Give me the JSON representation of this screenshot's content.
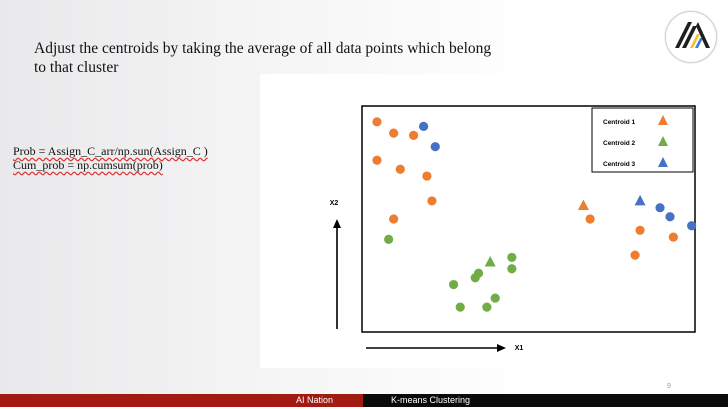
{
  "slide": {
    "title": "Adjust the centroids by taking the average of all data points which belong to that cluster",
    "number": "9"
  },
  "logo": {
    "icon": "ai-nation-logo-icon"
  },
  "code": {
    "line1": "Prob  = Assign_C_arr/np.sun(Assign_C )",
    "line2": "Cum_prob = np.cumsum(prob)"
  },
  "footer": {
    "left_label": "AI Nation",
    "right_label": "K-means Clustering"
  },
  "colors": {
    "orange": "#ed7d31",
    "green": "#70ad47",
    "blue": "#4472c4",
    "footer_red": "#a21b12",
    "footer_black": "#0a0a0a"
  },
  "chart_data": {
    "type": "scatter",
    "xlabel": "X1",
    "ylabel": "X2",
    "legend_position": "top-right",
    "legend": [
      {
        "label": "Centroid 1",
        "color": "#ed7d31",
        "marker": "triangle"
      },
      {
        "label": "Centroid 2",
        "color": "#70ad47",
        "marker": "triangle"
      },
      {
        "label": "Centroid 3",
        "color": "#4472c4",
        "marker": "triangle"
      }
    ],
    "grid": false,
    "series": [
      {
        "color": "#ed7d31",
        "points": [
          [
            9,
            93
          ],
          [
            19,
            88
          ],
          [
            31,
            87
          ],
          [
            9,
            76
          ],
          [
            23,
            72
          ],
          [
            39,
            69
          ],
          [
            42,
            58
          ],
          [
            19,
            50
          ],
          [
            137,
            50
          ],
          [
            167,
            45
          ],
          [
            187,
            42
          ],
          [
            164,
            34
          ]
        ],
        "centroid": [
          133,
          56
        ]
      },
      {
        "color": "#4472c4",
        "points": [
          [
            37,
            91
          ],
          [
            44,
            82
          ],
          [
            179,
            55
          ],
          [
            185,
            51
          ],
          [
            198,
            47
          ]
        ],
        "centroid": [
          167,
          58
        ]
      },
      {
        "color": "#70ad47",
        "points": [
          [
            16,
            41
          ],
          [
            90,
            33
          ],
          [
            70,
            26
          ],
          [
            90,
            28
          ],
          [
            68,
            24
          ],
          [
            55,
            21
          ],
          [
            80,
            15
          ],
          [
            59,
            11
          ],
          [
            75,
            11
          ]
        ],
        "centroid": [
          77,
          31
        ]
      }
    ]
  }
}
